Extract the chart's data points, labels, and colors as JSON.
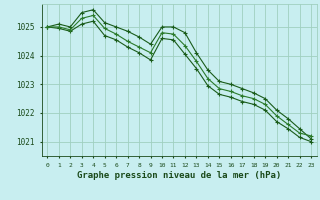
{
  "bg_color": "#c8eef0",
  "grid_color": "#a0d0c0",
  "line_color_dark": "#1a5c1a",
  "line_color_mid": "#2a7a2a",
  "xlabel": "Graphe pression niveau de la mer (hPa)",
  "xlabel_color": "#1a4a1a",
  "xlim": [
    -0.5,
    23.5
  ],
  "ylim": [
    1020.5,
    1025.8
  ],
  "yticks": [
    1021,
    1022,
    1023,
    1024,
    1025
  ],
  "xticks": [
    0,
    1,
    2,
    3,
    4,
    5,
    6,
    7,
    8,
    9,
    10,
    11,
    12,
    13,
    14,
    15,
    16,
    17,
    18,
    19,
    20,
    21,
    22,
    23
  ],
  "series1": [
    1025.0,
    1025.1,
    1025.0,
    1025.5,
    1025.6,
    1025.15,
    1025.0,
    1024.85,
    1024.65,
    1024.4,
    1025.0,
    1025.0,
    1024.8,
    1024.1,
    1023.5,
    1023.1,
    1023.0,
    1022.85,
    1022.7,
    1022.5,
    1022.1,
    1021.8,
    1021.45,
    1021.1
  ],
  "series2": [
    1025.0,
    1024.95,
    1024.85,
    1025.1,
    1025.2,
    1024.7,
    1024.55,
    1024.3,
    1024.1,
    1023.85,
    1024.6,
    1024.55,
    1024.05,
    1023.55,
    1022.95,
    1022.65,
    1022.55,
    1022.4,
    1022.3,
    1022.1,
    1021.7,
    1021.45,
    1021.15,
    1021.0
  ],
  "series3": [
    1025.0,
    1025.0,
    1024.9,
    1025.3,
    1025.4,
    1024.95,
    1024.75,
    1024.5,
    1024.3,
    1024.1,
    1024.8,
    1024.75,
    1024.35,
    1023.8,
    1023.2,
    1022.85,
    1022.75,
    1022.6,
    1022.5,
    1022.3,
    1021.9,
    1021.6,
    1021.3,
    1021.2
  ]
}
